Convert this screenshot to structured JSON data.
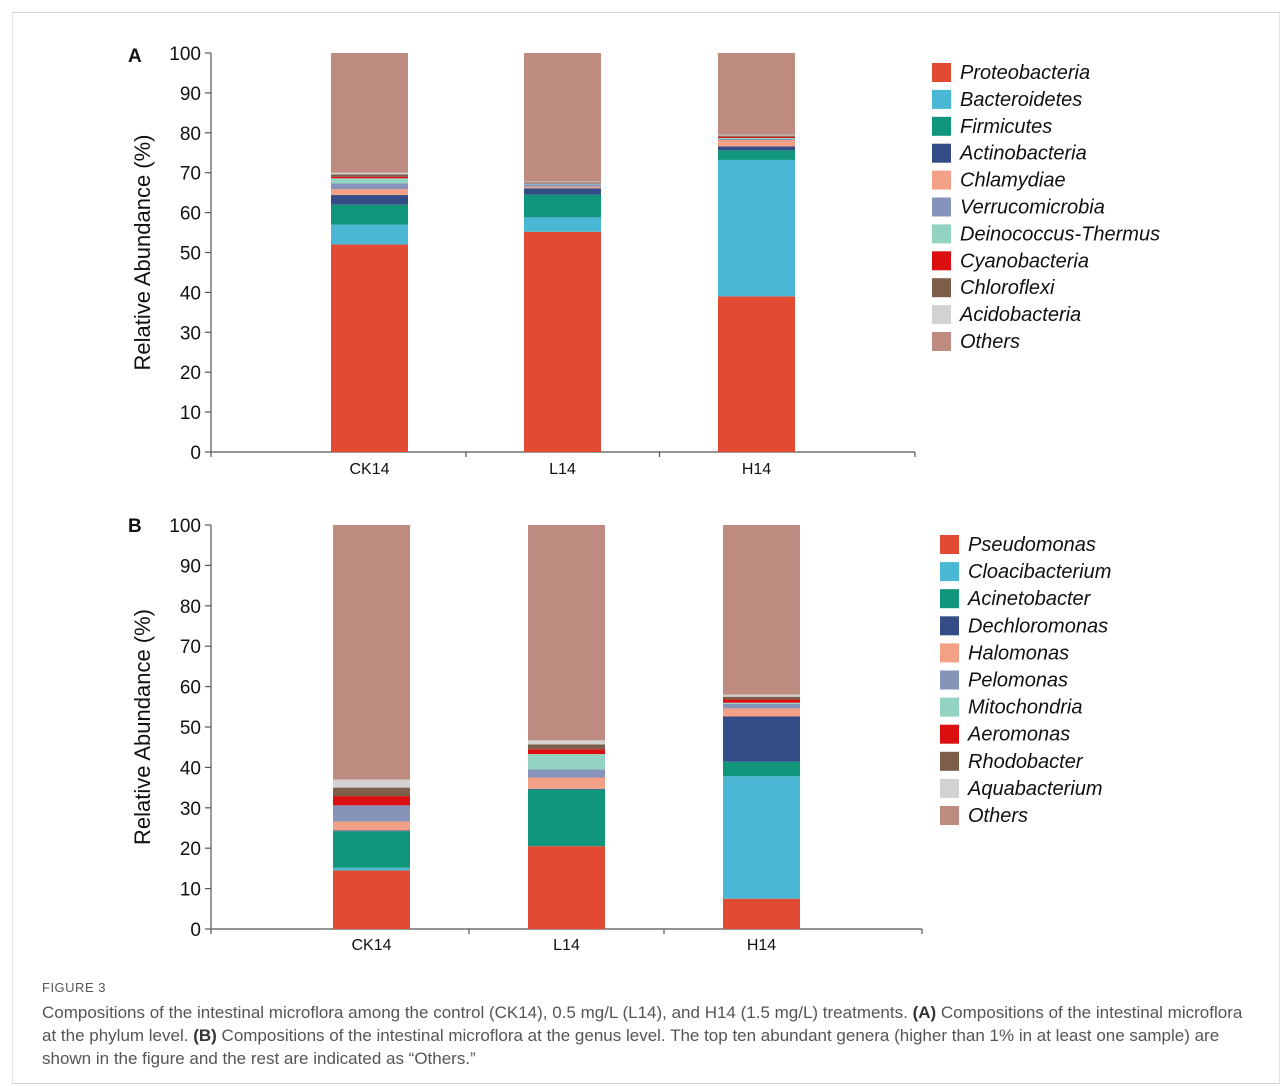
{
  "colors": {
    "c1": "#e34a33",
    "c2": "#4ab8d5",
    "c3": "#12967b",
    "c4": "#344d86",
    "c5": "#f2a187",
    "c6": "#8594b8",
    "c7": "#93d3c2",
    "c8": "#db0f10",
    "c9": "#7c5e4a",
    "c10": "#d2d2d2",
    "c11": "#be8b80"
  },
  "chart_data": [
    {
      "type": "bar",
      "stacked": true,
      "panel_label": "A",
      "ylabel": "Relative Abundance (%)",
      "ylim": [
        0,
        100
      ],
      "yticks": [
        "0",
        "10",
        "20",
        "30",
        "40",
        "50",
        "60",
        "70",
        "80",
        "90",
        "100"
      ],
      "categories": [
        "CK14",
        "L14",
        "H14"
      ],
      "legend_position": "right",
      "series": [
        {
          "name": "Proteobacteria",
          "color": "#e34a33",
          "values": [
            52.0,
            55.2,
            39.0
          ]
        },
        {
          "name": "Bacteroidetes",
          "color": "#4ab8d5",
          "values": [
            5.0,
            3.6,
            34.2
          ]
        },
        {
          "name": "Firmicutes",
          "color": "#12967b",
          "values": [
            5.0,
            5.7,
            2.4
          ]
        },
        {
          "name": "Actinobacteria",
          "color": "#344d86",
          "values": [
            2.4,
            1.6,
            1.0
          ]
        },
        {
          "name": "Chlamydiae",
          "color": "#f2a187",
          "values": [
            1.5,
            0.4,
            1.6
          ]
        },
        {
          "name": "Verrucomicrobia",
          "color": "#8594b8",
          "values": [
            1.4,
            0.6,
            0.3
          ]
        },
        {
          "name": "Deinococcus-Thermus",
          "color": "#93d3c2",
          "values": [
            1.3,
            0.2,
            0.2
          ]
        },
        {
          "name": "Cyanobacteria",
          "color": "#db0f10",
          "values": [
            0.4,
            0.1,
            0.3
          ]
        },
        {
          "name": "Chloroflexi",
          "color": "#7c5e4a",
          "values": [
            0.6,
            0.2,
            0.3
          ]
        },
        {
          "name": "Acidobacteria",
          "color": "#d2d2d2",
          "values": [
            0.4,
            0.2,
            0.2
          ]
        },
        {
          "name": "Others",
          "color": "#be8b80",
          "values": [
            30.0,
            32.2,
            20.5
          ]
        }
      ]
    },
    {
      "type": "bar",
      "stacked": true,
      "panel_label": "B",
      "ylabel": "Relative Abundance (%)",
      "ylim": [
        0,
        100
      ],
      "yticks": [
        "0",
        "10",
        "20",
        "30",
        "40",
        "50",
        "60",
        "70",
        "80",
        "90",
        "100"
      ],
      "categories": [
        "CK14",
        "L14",
        "H14"
      ],
      "legend_position": "right",
      "series": [
        {
          "name": "Pseudomonas",
          "color": "#e34a33",
          "values": [
            14.5,
            20.5,
            7.5
          ]
        },
        {
          "name": "Cloacibacterium",
          "color": "#4ab8d5",
          "values": [
            0.7,
            0.0,
            30.3
          ]
        },
        {
          "name": "Acinetobacter",
          "color": "#12967b",
          "values": [
            9.0,
            14.0,
            3.6
          ]
        },
        {
          "name": "Dechloromonas",
          "color": "#344d86",
          "values": [
            0.2,
            0.2,
            11.2
          ]
        },
        {
          "name": "Halomonas",
          "color": "#f2a187",
          "values": [
            2.2,
            2.8,
            2.0
          ]
        },
        {
          "name": "Pelomonas",
          "color": "#8594b8",
          "values": [
            4.0,
            2.0,
            1.1
          ]
        },
        {
          "name": "Mitochondria",
          "color": "#93d3c2",
          "values": [
            0.0,
            3.8,
            0.3
          ]
        },
        {
          "name": "Aeromonas",
          "color": "#db0f10",
          "values": [
            2.3,
            1.2,
            0.8
          ]
        },
        {
          "name": "Rhodobacter",
          "color": "#7c5e4a",
          "values": [
            2.1,
            1.2,
            0.7
          ]
        },
        {
          "name": "Aquabacterium",
          "color": "#d2d2d2",
          "values": [
            2.0,
            1.0,
            0.5
          ]
        },
        {
          "name": "Others",
          "color": "#be8b80",
          "values": [
            63.0,
            53.3,
            42.0
          ]
        }
      ]
    }
  ],
  "caption": {
    "figure_label": "FIGURE 3",
    "text_1": "Compositions of the intestinal microflora among the control (CK14), 0.5 mg/L (L14), and H14 (1.5 mg/L) treatments. ",
    "label_a": "(A)",
    "text_2": " Compositions of the intestinal microflora at the phylum level. ",
    "label_b": "(B)",
    "text_3": " Compositions of the intestinal microflora at the genus level. The top ten abundant genera (higher than 1% in at least one sample) are shown in the figure and the rest are indicated as “Others.”"
  }
}
